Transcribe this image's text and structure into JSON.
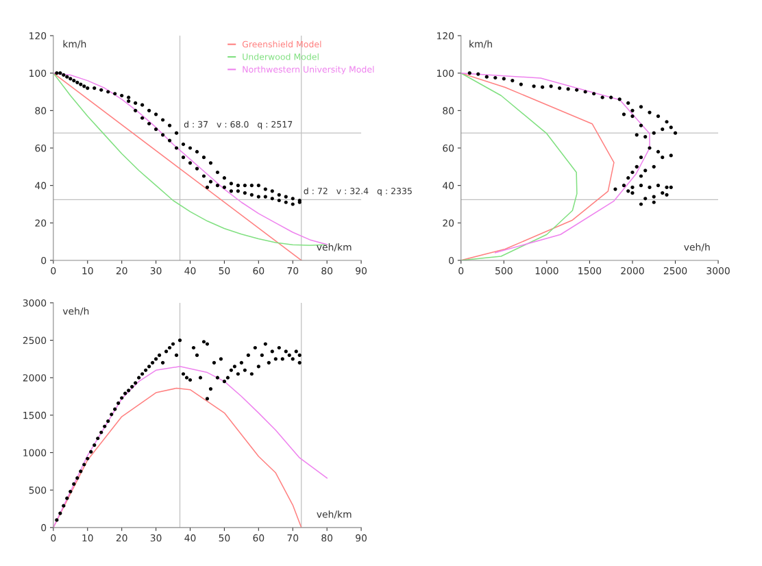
{
  "chart_data": [
    {
      "type": "scatter",
      "xlabel": "veh/km",
      "ylabel": "km/h",
      "xlim": [
        0,
        90
      ],
      "ylim": [
        0,
        120
      ],
      "xticks": [
        0,
        10,
        20,
        30,
        40,
        50,
        60,
        70,
        80,
        90
      ],
      "yticks": [
        0,
        20,
        40,
        60,
        80,
        100,
        120
      ],
      "legend": "top right",
      "series": [
        {
          "color": "#000000",
          "marker": "circle",
          "x": [
            1,
            2,
            3,
            4,
            5,
            6,
            7,
            8,
            9,
            10,
            12,
            14,
            16,
            18,
            20,
            22,
            22,
            24,
            24,
            26,
            26,
            28,
            28,
            30,
            30,
            32,
            32,
            34,
            34,
            36,
            36,
            38,
            38,
            40,
            40,
            42,
            42,
            44,
            44,
            45,
            46,
            46,
            48,
            48,
            50,
            50,
            52,
            52,
            54,
            54,
            56,
            56,
            58,
            58,
            60,
            60,
            62,
            62,
            64,
            64,
            66,
            66,
            68,
            68,
            70,
            70,
            72,
            72
          ],
          "values": [
            100,
            100,
            99,
            98,
            97,
            96,
            95,
            94,
            93,
            92,
            92,
            91,
            90,
            89,
            88,
            87,
            85,
            84,
            80,
            83,
            76,
            80,
            73,
            78,
            70,
            75,
            67,
            72,
            64,
            68,
            60,
            62,
            55,
            60,
            52,
            58,
            49,
            55,
            45,
            39,
            52,
            42,
            47,
            40,
            44,
            39,
            41,
            37,
            40,
            37,
            40,
            36,
            40,
            35,
            40,
            34,
            38,
            34,
            37,
            33,
            35,
            32,
            34,
            31,
            33,
            30,
            32,
            31
          ]
        },
        {
          "type": "line",
          "name": "Greenshield Model",
          "color": "#ff8080",
          "x": [
            0,
            72.5
          ],
          "values": [
            100,
            0
          ]
        },
        {
          "type": "line",
          "name": "Underwood Model",
          "color": "#80e080",
          "x": [
            0,
            5,
            10,
            15,
            20,
            25,
            30,
            35,
            40,
            45,
            50,
            55,
            60,
            65,
            70,
            75,
            80
          ],
          "values": [
            100,
            88,
            77,
            67,
            57,
            48,
            40,
            32,
            26,
            21,
            17,
            14,
            11.5,
            9.5,
            8.3,
            8,
            8.4
          ]
        },
        {
          "type": "line",
          "name": "Northwestern University Model",
          "color": "#ee82ee",
          "x": [
            0,
            5,
            10,
            15,
            20,
            25,
            30,
            35,
            40,
            45,
            50,
            55,
            60,
            65,
            70,
            75,
            80
          ],
          "values": [
            100,
            99,
            96,
            92,
            86,
            79,
            71,
            62,
            54,
            46,
            38,
            31,
            25,
            20,
            15,
            11,
            8.5
          ]
        }
      ],
      "ref_lines": [
        {
          "axis": "x",
          "value": 37,
          "color": "#c0c0c0"
        },
        {
          "axis": "x",
          "value": 72.5,
          "color": "#c0c0c0"
        },
        {
          "axis": "y",
          "value": 68,
          "color": "#c0c0c0"
        },
        {
          "axis": "y",
          "value": 32.4,
          "color": "#c0c0c0"
        }
      ],
      "annotations": [
        {
          "text": "d : 37   v : 68.0   q : 2517",
          "x": 37,
          "y": 68
        },
        {
          "text": "d : 72   v : 32.4   q : 2335",
          "x": 72,
          "y": 32.4
        }
      ]
    },
    {
      "type": "scatter",
      "xlabel": "veh/h",
      "ylabel": "km/h",
      "xlim": [
        0,
        3000
      ],
      "ylim": [
        0,
        120
      ],
      "xticks": [
        0,
        500,
        1000,
        1500,
        2000,
        2500,
        3000
      ],
      "yticks": [
        0,
        20,
        40,
        60,
        80,
        100,
        120
      ],
      "series": [
        {
          "color": "#000000",
          "marker": "circle",
          "x": [
            100,
            200,
            300,
            400,
            500,
            600,
            700,
            850,
            950,
            1050,
            1150,
            1250,
            1350,
            1450,
            1550,
            1650,
            1750,
            1850,
            1950,
            1900,
            2000,
            2100,
            2200,
            2300,
            2400,
            2500,
            2450,
            2350,
            2250,
            2150,
            2050,
            2100,
            2000,
            2200,
            2300,
            2450,
            2350,
            2100,
            2050,
            2000,
            2150,
            2250,
            2100,
            1950,
            1800,
            1900,
            2000,
            2100,
            2200,
            2300,
            2400,
            2450,
            2350,
            2250,
            2150,
            2100,
            2250,
            2400,
            2000,
            1950
          ],
          "values": [
            100,
            99.5,
            98,
            97.5,
            97,
            96,
            94,
            93,
            92.5,
            93,
            92,
            91.5,
            91,
            90,
            89,
            87,
            87,
            86,
            84,
            78,
            80,
            82,
            79,
            77,
            74,
            68,
            71,
            70,
            68,
            66,
            67,
            72,
            77,
            60,
            58,
            56,
            55,
            55,
            50,
            47,
            48,
            50,
            45,
            44,
            38,
            40,
            39,
            40,
            39,
            40,
            39,
            39,
            36,
            34,
            33,
            30,
            31,
            35,
            36,
            37
          ]
        },
        {
          "type": "line",
          "color": "#ff8080",
          "x": [
            0,
            515,
            1530,
            1784,
            1715,
            1300,
            515,
            0
          ],
          "values": [
            100,
            92.4,
            72.9,
            52.3,
            36.9,
            21.5,
            6,
            0
          ]
        },
        {
          "type": "line",
          "color": "#80e080",
          "x": [
            0,
            468,
            1000,
            1346,
            1352,
            1300,
            1000,
            468,
            0
          ],
          "values": [
            100,
            88,
            67.7,
            47,
            35.6,
            26.6,
            13.8,
            2.2,
            0
          ]
        },
        {
          "type": "line",
          "color": "#ee82ee",
          "x": [
            0,
            930,
            1853,
            2200,
            2200,
            2038,
            1784,
            1161,
            400
          ],
          "values": [
            100,
            97.3,
            85.7,
            67.7,
            60,
            45.9,
            31.7,
            13.8,
            4.1
          ]
        }
      ],
      "ref_lines": [
        {
          "axis": "y",
          "value": 68,
          "color": "#c0c0c0"
        },
        {
          "axis": "y",
          "value": 32.4,
          "color": "#c0c0c0"
        }
      ]
    },
    {
      "type": "scatter",
      "xlabel": "veh/km",
      "ylabel": "veh/h",
      "xlim": [
        0,
        90
      ],
      "ylim": [
        0,
        3000
      ],
      "xticks": [
        0,
        10,
        20,
        30,
        40,
        50,
        60,
        70,
        80,
        90
      ],
      "yticks": [
        0,
        500,
        1000,
        1500,
        2000,
        2500,
        3000
      ],
      "series": [
        {
          "color": "#000000",
          "marker": "circle",
          "x": [
            1,
            2,
            3,
            4,
            5,
            6,
            7,
            8,
            9,
            10,
            11,
            12,
            13,
            14,
            15,
            16,
            17,
            18,
            19,
            20,
            21,
            22,
            23,
            24,
            25,
            26,
            27,
            28,
            29,
            30,
            31,
            32,
            33,
            34,
            35,
            36,
            37,
            38,
            39,
            40,
            41,
            42,
            43,
            44,
            45,
            45,
            46,
            47,
            48,
            49,
            50,
            51,
            52,
            53,
            54,
            55,
            56,
            57,
            58,
            59,
            60,
            61,
            62,
            63,
            64,
            65,
            66,
            67,
            68,
            69,
            70,
            71,
            72,
            72
          ],
          "values": [
            100,
            190,
            290,
            390,
            480,
            580,
            660,
            750,
            840,
            920,
            1010,
            1100,
            1190,
            1270,
            1350,
            1420,
            1510,
            1580,
            1660,
            1730,
            1790,
            1830,
            1880,
            1930,
            2000,
            2050,
            2100,
            2150,
            2200,
            2250,
            2300,
            2200,
            2350,
            2400,
            2450,
            2300,
            2500,
            2050,
            2000,
            1970,
            2400,
            2300,
            2000,
            2480,
            1720,
            2450,
            1850,
            2200,
            2000,
            2250,
            1950,
            2000,
            2100,
            2150,
            2050,
            2200,
            2100,
            2300,
            2050,
            2400,
            2150,
            2300,
            2450,
            2200,
            2350,
            2250,
            2400,
            2250,
            2350,
            2300,
            2250,
            2350,
            2300,
            2200
          ]
        },
        {
          "type": "line",
          "color": "#ff8080",
          "x": [
            0,
            10,
            20,
            30,
            36,
            40,
            50,
            60,
            65,
            70,
            72.5
          ],
          "values": [
            0,
            900,
            1480,
            1800,
            1860,
            1840,
            1530,
            950,
            730,
            300,
            0
          ]
        },
        {
          "type": "line",
          "color": "#ee82ee",
          "x": [
            0,
            10,
            20,
            25,
            30,
            37,
            45,
            50,
            55,
            60,
            65,
            72,
            80
          ],
          "values": [
            0,
            960,
            1720,
            1950,
            2100,
            2150,
            2070,
            1950,
            1750,
            1530,
            1300,
            930,
            660
          ]
        }
      ],
      "ref_lines": [
        {
          "axis": "x",
          "value": 37,
          "color": "#c0c0c0"
        },
        {
          "axis": "x",
          "value": 72.5,
          "color": "#c0c0c0"
        }
      ]
    }
  ]
}
